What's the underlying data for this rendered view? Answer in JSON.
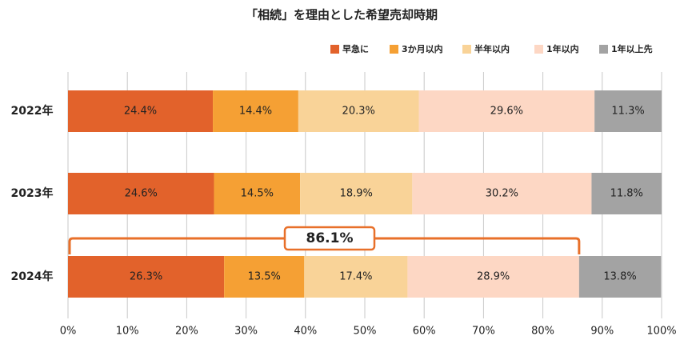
{
  "chart_data": {
    "type": "stacked-bar-horizontal",
    "title": "「相続」を理由とした希望売却時期",
    "categories": [
      "2022年",
      "2023年",
      "2024年"
    ],
    "series": [
      {
        "name": "早急に",
        "color": "#e2622b",
        "values": [
          24.4,
          24.6,
          26.3
        ],
        "value_labels": [
          "24.4%",
          "24.6%",
          "26.3%"
        ]
      },
      {
        "name": "3か月以内",
        "color": "#f5a034",
        "values": [
          14.4,
          14.5,
          13.5
        ],
        "value_labels": [
          "14.4%",
          "14.5%",
          "13.5%"
        ]
      },
      {
        "name": "半年以内",
        "color": "#f9d398",
        "values": [
          20.3,
          18.9,
          17.4
        ],
        "value_labels": [
          "20.3%",
          "18.9%",
          "17.4%"
        ]
      },
      {
        "name": "1年以内",
        "color": "#fdd7c4",
        "values": [
          29.6,
          30.2,
          28.9
        ],
        "value_labels": [
          "29.6%",
          "30.2%",
          "28.9%"
        ]
      },
      {
        "name": "1年以上先",
        "color": "#a3a3a3",
        "values": [
          11.3,
          11.8,
          13.8
        ],
        "value_labels": [
          "11.3%",
          "11.8%",
          "13.8%"
        ]
      }
    ],
    "xlim": [
      0,
      100
    ],
    "xticks": [
      {
        "value": 0,
        "label": "0%"
      },
      {
        "value": 10,
        "label": "10%"
      },
      {
        "value": 20,
        "label": "20%"
      },
      {
        "value": 30,
        "label": "30%"
      },
      {
        "value": 40,
        "label": "40%"
      },
      {
        "value": 50,
        "label": "50%"
      },
      {
        "value": 60,
        "label": "60%"
      },
      {
        "value": 70,
        "label": "70%"
      },
      {
        "value": 80,
        "label": "80%"
      },
      {
        "value": 90,
        "label": "90%"
      },
      {
        "value": 100,
        "label": "100%"
      }
    ],
    "grid": true,
    "legend": "top-right",
    "annotation": {
      "value": 86.1,
      "label": "86.1%"
    }
  }
}
